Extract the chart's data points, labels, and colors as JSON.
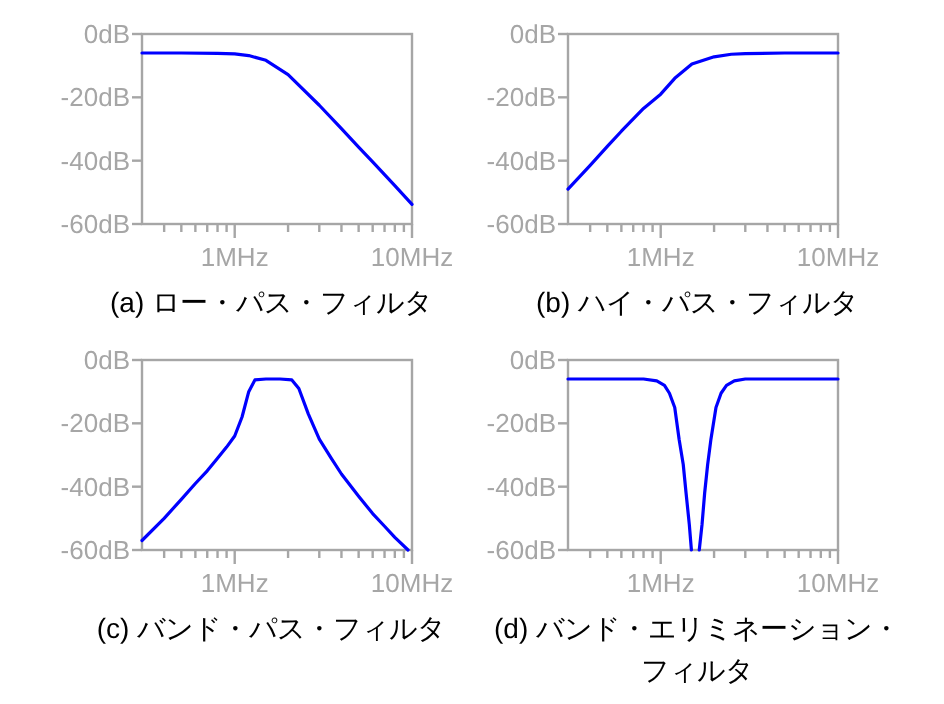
{
  "chart_data": [
    {
      "type": "line",
      "title": "(a) ロー・パス・フィルタ",
      "log": "x",
      "xlim": [
        0.3,
        10
      ],
      "ylim": [
        -60,
        0
      ],
      "xticks": [
        {
          "value": 0.4,
          "label": null
        },
        {
          "value": 0.5,
          "label": null
        },
        {
          "value": 0.6,
          "label": null
        },
        {
          "value": 0.7,
          "label": null
        },
        {
          "value": 0.8,
          "label": null
        },
        {
          "value": 0.9,
          "label": null
        },
        {
          "value": 1,
          "label": "1MHz"
        },
        {
          "value": 2,
          "label": null
        },
        {
          "value": 3,
          "label": null
        },
        {
          "value": 4,
          "label": null
        },
        {
          "value": 5,
          "label": null
        },
        {
          "value": 6,
          "label": null
        },
        {
          "value": 7,
          "label": null
        },
        {
          "value": 8,
          "label": null
        },
        {
          "value": 9,
          "label": null
        },
        {
          "value": 10,
          "label": "10MHz"
        }
      ],
      "yticks": [
        {
          "value": 0,
          "label": "0dB"
        },
        {
          "value": -20,
          "label": "-20dB"
        },
        {
          "value": -40,
          "label": "-40dB"
        },
        {
          "value": -60,
          "label": "-60dB"
        }
      ],
      "series": [
        {
          "color": "#0000ff",
          "x": [
            0.3,
            0.5,
            0.8,
            1,
            1.2,
            1.5,
            2,
            3,
            4,
            5,
            6,
            8,
            10
          ],
          "values": [
            -6,
            -6,
            -6.1,
            -6.3,
            -6.8,
            -8.3,
            -12.8,
            -22.5,
            -29.9,
            -35.7,
            -40.4,
            -47.9,
            -53.8
          ]
        }
      ]
    },
    {
      "type": "line",
      "title": "(b) ハイ・パス・フィルタ",
      "log": "x",
      "xlim": [
        0.3,
        10
      ],
      "ylim": [
        -60,
        0
      ],
      "xticks": [
        {
          "value": 0.4,
          "label": null
        },
        {
          "value": 0.5,
          "label": null
        },
        {
          "value": 0.6,
          "label": null
        },
        {
          "value": 0.7,
          "label": null
        },
        {
          "value": 0.8,
          "label": null
        },
        {
          "value": 0.9,
          "label": null
        },
        {
          "value": 1,
          "label": "1MHz"
        },
        {
          "value": 2,
          "label": null
        },
        {
          "value": 3,
          "label": null
        },
        {
          "value": 4,
          "label": null
        },
        {
          "value": 5,
          "label": null
        },
        {
          "value": 6,
          "label": null
        },
        {
          "value": 7,
          "label": null
        },
        {
          "value": 8,
          "label": null
        },
        {
          "value": 9,
          "label": null
        },
        {
          "value": 10,
          "label": "10MHz"
        }
      ],
      "yticks": [
        {
          "value": 0,
          "label": "0dB"
        },
        {
          "value": -20,
          "label": "-20dB"
        },
        {
          "value": -40,
          "label": "-40dB"
        },
        {
          "value": -60,
          "label": "-60dB"
        }
      ],
      "series": [
        {
          "color": "#0000ff",
          "x": [
            0.3,
            0.4,
            0.5,
            0.6,
            0.8,
            1,
            1.2,
            1.5,
            2,
            2.5,
            3,
            5,
            10
          ],
          "values": [
            -49,
            -41.5,
            -35.5,
            -30.7,
            -23.5,
            -19,
            -14,
            -9.5,
            -7.2,
            -6.4,
            -6.2,
            -6,
            -6
          ]
        }
      ]
    },
    {
      "type": "line",
      "title": "(c) バンド・パス・フィルタ",
      "log": "x",
      "xlim": [
        0.3,
        10
      ],
      "ylim": [
        -60,
        0
      ],
      "xticks": [
        {
          "value": 0.4,
          "label": null
        },
        {
          "value": 0.5,
          "label": null
        },
        {
          "value": 0.6,
          "label": null
        },
        {
          "value": 0.7,
          "label": null
        },
        {
          "value": 0.8,
          "label": null
        },
        {
          "value": 0.9,
          "label": null
        },
        {
          "value": 1,
          "label": "1MHz"
        },
        {
          "value": 2,
          "label": null
        },
        {
          "value": 3,
          "label": null
        },
        {
          "value": 4,
          "label": null
        },
        {
          "value": 5,
          "label": null
        },
        {
          "value": 6,
          "label": null
        },
        {
          "value": 7,
          "label": null
        },
        {
          "value": 8,
          "label": null
        },
        {
          "value": 9,
          "label": null
        },
        {
          "value": 10,
          "label": "10MHz"
        }
      ],
      "yticks": [
        {
          "value": 0,
          "label": "0dB"
        },
        {
          "value": -20,
          "label": "-20dB"
        },
        {
          "value": -40,
          "label": "-40dB"
        },
        {
          "value": -60,
          "label": "-60dB"
        }
      ],
      "series": [
        {
          "color": "#0000ff",
          "x": [
            0.3,
            0.4,
            0.5,
            0.6,
            0.7,
            0.8,
            0.9,
            1,
            1.1,
            1.2,
            1.3,
            1.5,
            1.8,
            2.1,
            2.3,
            2.6,
            3,
            3.5,
            4,
            5,
            6,
            7,
            8,
            9.5
          ],
          "values": [
            -57,
            -50,
            -44,
            -39,
            -35,
            -31,
            -27.5,
            -24,
            -18,
            -10,
            -6.3,
            -6,
            -6,
            -6.3,
            -9,
            -17,
            -25,
            -31,
            -36,
            -43,
            -48.5,
            -52.5,
            -56,
            -60
          ]
        }
      ]
    },
    {
      "type": "line",
      "title": "(d) バンド・エリミネーション・フィルタ",
      "log": "x",
      "xlim": [
        0.3,
        10
      ],
      "ylim": [
        -60,
        0
      ],
      "xticks": [
        {
          "value": 0.4,
          "label": null
        },
        {
          "value": 0.5,
          "label": null
        },
        {
          "value": 0.6,
          "label": null
        },
        {
          "value": 0.7,
          "label": null
        },
        {
          "value": 0.8,
          "label": null
        },
        {
          "value": 0.9,
          "label": null
        },
        {
          "value": 1,
          "label": "1MHz"
        },
        {
          "value": 2,
          "label": null
        },
        {
          "value": 3,
          "label": null
        },
        {
          "value": 4,
          "label": null
        },
        {
          "value": 5,
          "label": null
        },
        {
          "value": 6,
          "label": null
        },
        {
          "value": 7,
          "label": null
        },
        {
          "value": 8,
          "label": null
        },
        {
          "value": 9,
          "label": null
        },
        {
          "value": 10,
          "label": "10MHz"
        }
      ],
      "yticks": [
        {
          "value": 0,
          "label": "0dB"
        },
        {
          "value": -20,
          "label": "-20dB"
        },
        {
          "value": -40,
          "label": "-40dB"
        },
        {
          "value": -60,
          "label": "-60dB"
        }
      ],
      "series": [
        {
          "color": "#0000ff",
          "x": [
            0.3,
            0.8,
            0.95,
            1.05,
            1.12,
            1.2,
            1.27,
            1.34,
            1.39,
            1.45,
            1.49
          ],
          "values": [
            -6,
            -6,
            -6.6,
            -8,
            -10.5,
            -15,
            -25,
            -33,
            -42,
            -52,
            -60
          ]
        },
        {
          "color": "#0000ff",
          "x": [
            1.65,
            1.71,
            1.77,
            1.84,
            1.92,
            2.05,
            2.19,
            2.35,
            2.6,
            3,
            10
          ],
          "values": [
            -60,
            -52,
            -42,
            -33,
            -25,
            -15,
            -10.5,
            -8,
            -6.6,
            -6,
            -6
          ]
        }
      ]
    }
  ]
}
